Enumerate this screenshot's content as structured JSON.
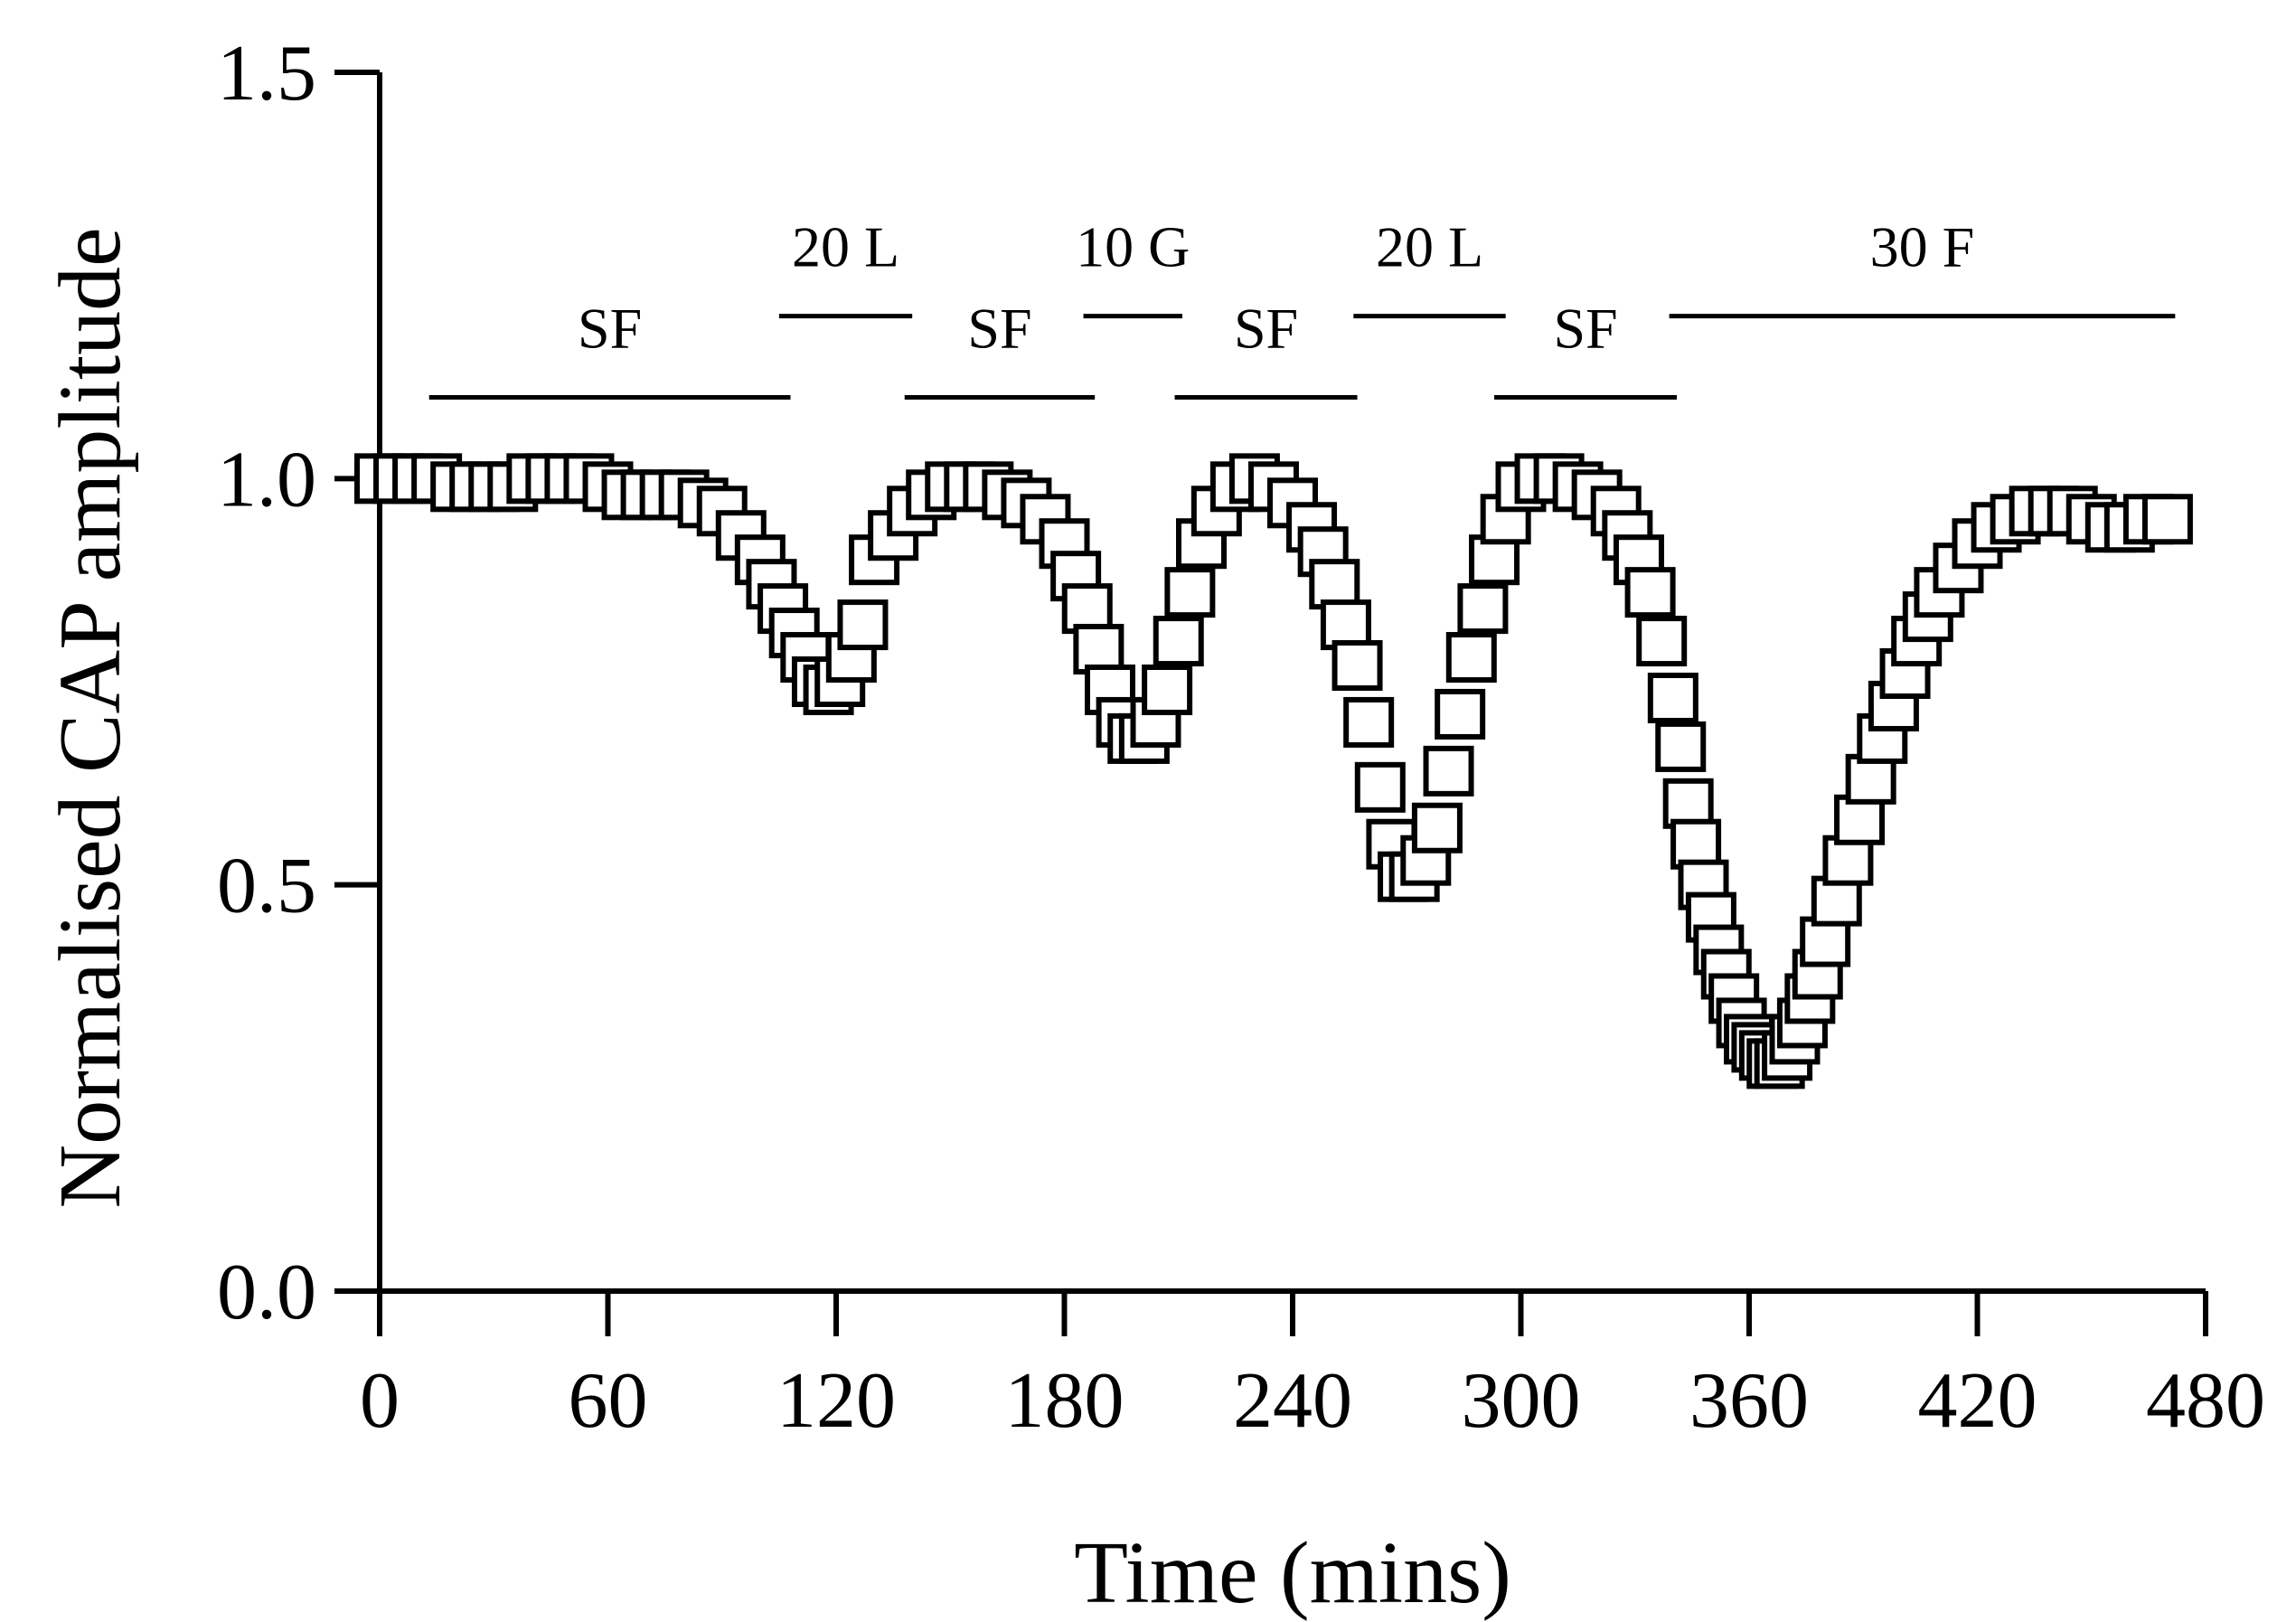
{
  "chart_data": {
    "type": "scatter",
    "title": "",
    "xlabel": "Time (mins)",
    "ylabel": "Normalised CAP amplitude",
    "xlim": [
      0,
      480
    ],
    "ylim": [
      0.0,
      1.5
    ],
    "xticks": [
      "0",
      "60",
      "120",
      "180",
      "240",
      "300",
      "360",
      "420",
      "480"
    ],
    "yticks": [
      "0.0",
      "0.5",
      "1.0",
      "1.5"
    ],
    "grid": false,
    "marker": "open-square",
    "treatment_bars": [
      {
        "label": "SF",
        "start": 13,
        "end": 108,
        "y": 1.1
      },
      {
        "label": "20 L",
        "start": 105,
        "end": 140,
        "y": 1.2
      },
      {
        "label": "SF",
        "start": 138,
        "end": 188,
        "y": 1.1
      },
      {
        "label": "10 G",
        "start": 185,
        "end": 211,
        "y": 1.2
      },
      {
        "label": "SF",
        "start": 209,
        "end": 257,
        "y": 1.1
      },
      {
        "label": "20 L",
        "start": 256,
        "end": 296,
        "y": 1.2
      },
      {
        "label": "SF",
        "start": 293,
        "end": 341,
        "y": 1.1
      },
      {
        "label": "30 F",
        "start": 339,
        "end": 472,
        "y": 1.2
      }
    ],
    "series": [
      {
        "name": "CAP amplitude",
        "x": [
          0,
          5,
          10,
          15,
          20,
          25,
          30,
          35,
          40,
          45,
          50,
          55,
          60,
          65,
          70,
          75,
          80,
          85,
          90,
          95,
          100,
          103,
          106,
          109,
          112,
          115,
          118,
          121,
          124,
          127,
          130,
          135,
          140,
          145,
          150,
          155,
          160,
          165,
          170,
          175,
          180,
          183,
          186,
          189,
          192,
          195,
          198,
          201,
          204,
          207,
          210,
          213,
          216,
          220,
          225,
          230,
          235,
          240,
          245,
          248,
          251,
          254,
          257,
          260,
          263,
          266,
          269,
          272,
          275,
          278,
          281,
          284,
          287,
          290,
          293,
          296,
          300,
          305,
          310,
          315,
          320,
          325,
          328,
          331,
          334,
          337,
          340,
          342,
          344,
          346,
          348,
          350,
          352,
          354,
          356,
          358,
          360,
          362,
          364,
          366,
          368,
          370,
          372,
          374,
          376,
          378,
          380,
          383,
          386,
          389,
          392,
          395,
          398,
          401,
          404,
          407,
          410,
          415,
          420,
          425,
          430,
          435,
          440,
          445,
          450,
          455,
          460,
          465,
          470
        ],
        "y": [
          1.0,
          1.0,
          1.0,
          1.0,
          0.99,
          0.99,
          0.99,
          0.99,
          1.0,
          1.0,
          1.0,
          1.0,
          0.99,
          0.98,
          0.98,
          0.98,
          0.98,
          0.97,
          0.96,
          0.93,
          0.9,
          0.87,
          0.84,
          0.81,
          0.78,
          0.75,
          0.74,
          0.75,
          0.78,
          0.82,
          0.9,
          0.93,
          0.96,
          0.98,
          0.99,
          0.99,
          0.99,
          0.98,
          0.97,
          0.95,
          0.92,
          0.88,
          0.84,
          0.79,
          0.74,
          0.7,
          0.68,
          0.68,
          0.7,
          0.74,
          0.8,
          0.86,
          0.92,
          0.96,
          0.99,
          1.0,
          0.99,
          0.97,
          0.94,
          0.91,
          0.87,
          0.82,
          0.77,
          0.7,
          0.62,
          0.55,
          0.51,
          0.51,
          0.53,
          0.57,
          0.64,
          0.71,
          0.78,
          0.84,
          0.9,
          0.95,
          0.99,
          1.0,
          1.0,
          0.99,
          0.98,
          0.96,
          0.93,
          0.9,
          0.86,
          0.8,
          0.73,
          0.67,
          0.6,
          0.55,
          0.5,
          0.46,
          0.42,
          0.39,
          0.36,
          0.33,
          0.31,
          0.3,
          0.29,
          0.28,
          0.28,
          0.29,
          0.31,
          0.33,
          0.36,
          0.39,
          0.43,
          0.48,
          0.53,
          0.58,
          0.63,
          0.68,
          0.72,
          0.76,
          0.8,
          0.83,
          0.86,
          0.89,
          0.92,
          0.94,
          0.95,
          0.96,
          0.96,
          0.96,
          0.95,
          0.94,
          0.94,
          0.95,
          0.95
        ]
      }
    ]
  }
}
